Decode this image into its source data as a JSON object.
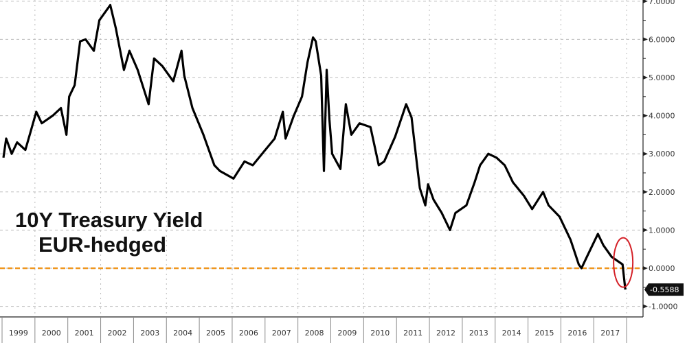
{
  "chart_data": {
    "type": "line",
    "title": "10Y Treasury Yield",
    "subtitle": "EUR-hedged",
    "xlabel": "",
    "ylabel": "",
    "x_tick_labels": [
      "1999",
      "2000",
      "2001",
      "2002",
      "2003",
      "2004",
      "2005",
      "2006",
      "2007",
      "2008",
      "2009",
      "2010",
      "2011",
      "2012",
      "2013",
      "2014",
      "2015",
      "2016",
      "2017"
    ],
    "y_tick_labels": [
      "7.0000",
      "6.0000",
      "5.0000",
      "4.0000",
      "3.0000",
      "2.0000",
      "1.0000",
      "0.0000",
      "-1.0000"
    ],
    "y_ticks": [
      7,
      6,
      5,
      4,
      3,
      2,
      1,
      0,
      -1
    ],
    "ylim": [
      -1.2,
      7.05
    ],
    "xlim": [
      "1999-01",
      "2018-06"
    ],
    "grid": true,
    "y_axis_side": "right",
    "last_value_label": "-0.5588",
    "reference_line": {
      "value": 0,
      "color": "#f0961e",
      "style": "dashed"
    },
    "highlight": {
      "shape": "ellipse",
      "color": "#d42027",
      "around": "2017 drop below zero"
    },
    "line_color": "#000000",
    "series": [
      {
        "x": [
          "1999-01",
          "1999-02",
          "1999-04",
          "1999-06",
          "1999-09",
          "1999-11",
          "2000-01",
          "2000-03",
          "2000-07",
          "2000-10",
          "2000-12",
          "2001-01",
          "2001-03",
          "2001-05",
          "2001-07",
          "2001-10",
          "2001-12",
          "2002-03",
          "2002-04",
          "2002-06",
          "2002-09",
          "2002-11",
          "2003-02",
          "2003-06",
          "2003-08",
          "2003-11",
          "2004-03",
          "2004-06",
          "2004-07",
          "2004-10",
          "2005-02",
          "2005-06",
          "2005-08",
          "2006-01",
          "2006-05",
          "2006-08",
          "2006-12",
          "2007-04",
          "2007-07",
          "2007-08",
          "2007-11",
          "2008-02",
          "2008-04",
          "2008-06",
          "2008-07",
          "2008-09",
          "2008-10",
          "2008-11",
          "2008-12",
          "2009-01",
          "2009-04",
          "2009-06",
          "2009-08",
          "2009-11",
          "2010-03",
          "2010-06",
          "2010-08",
          "2010-12",
          "2011-04",
          "2011-06",
          "2011-08",
          "2011-09",
          "2011-11",
          "2011-12",
          "2012-02",
          "2012-05",
          "2012-08",
          "2012-10",
          "2013-02",
          "2013-05",
          "2013-07",
          "2013-10",
          "2014-01",
          "2014-04",
          "2014-07",
          "2014-11",
          "2015-02",
          "2015-06",
          "2015-08",
          "2015-12",
          "2016-04",
          "2016-07",
          "2016-08",
          "2016-10",
          "2017-01",
          "2017-02",
          "2017-04",
          "2017-07",
          "2017-09",
          "2017-11",
          "2017-12"
        ],
        "y": [
          2.9,
          3.4,
          3.0,
          3.3,
          3.1,
          3.6,
          4.1,
          3.8,
          4.0,
          4.2,
          3.5,
          4.5,
          4.8,
          5.95,
          6.0,
          5.7,
          6.5,
          6.8,
          6.9,
          6.3,
          5.2,
          5.7,
          5.2,
          4.3,
          5.5,
          5.3,
          4.9,
          5.7,
          5.05,
          4.2,
          3.5,
          2.7,
          2.55,
          2.35,
          2.8,
          2.7,
          3.05,
          3.4,
          4.1,
          3.4,
          4.0,
          4.5,
          5.4,
          6.05,
          5.95,
          5.05,
          2.55,
          5.2,
          3.9,
          3.0,
          2.6,
          4.3,
          3.5,
          3.8,
          3.7,
          2.7,
          2.8,
          3.45,
          4.3,
          3.95,
          2.7,
          2.1,
          1.65,
          2.2,
          1.8,
          1.45,
          1.0,
          1.45,
          1.65,
          2.25,
          2.7,
          3.0,
          2.9,
          2.7,
          2.25,
          1.9,
          1.55,
          2.0,
          1.65,
          1.35,
          0.75,
          0.1,
          0.0,
          0.3,
          0.75,
          0.9,
          0.6,
          0.3,
          0.2,
          0.1,
          -0.5588
        ]
      }
    ]
  }
}
